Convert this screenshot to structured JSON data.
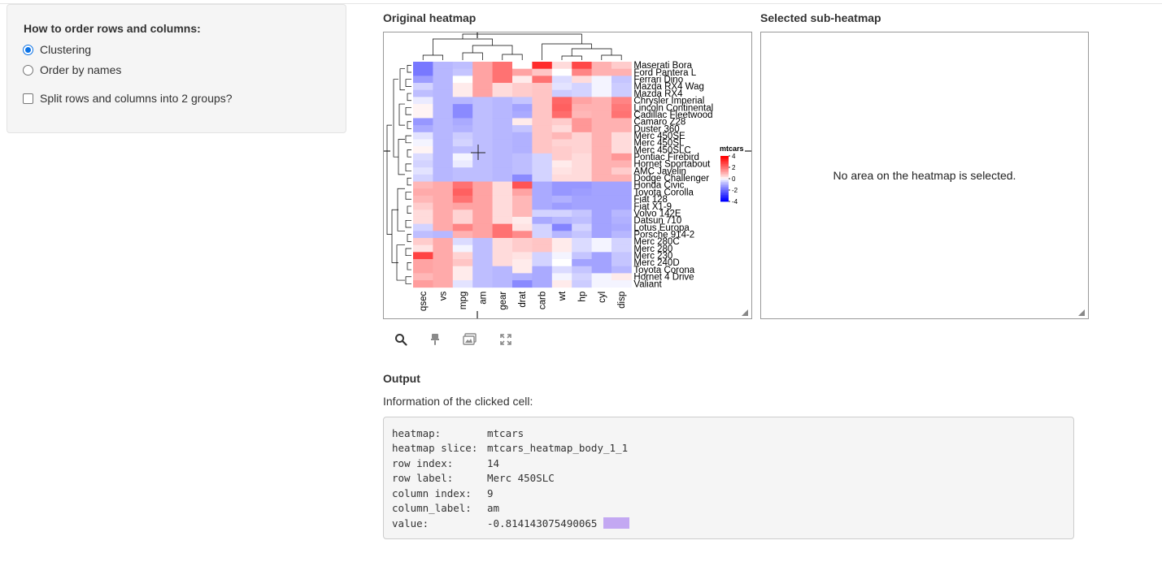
{
  "sidebar": {
    "title": "How to order rows and columns:",
    "options": [
      {
        "label": "Clustering",
        "selected": true
      },
      {
        "label": "Order by names",
        "selected": false
      }
    ],
    "split_label": "Split rows and columns into 2 groups?",
    "split_checked": false
  },
  "main": {
    "original_title": "Original heatmap",
    "sub_title": "Selected sub-heatmap",
    "sub_empty_message": "No area on the heatmap is selected."
  },
  "toolbar": {
    "icons": [
      "search-icon",
      "brush-icon",
      "image-icon",
      "expand-icon"
    ]
  },
  "output": {
    "title": "Output",
    "subtitle": "Information of the clicked cell:",
    "rows": [
      {
        "key": "heatmap:",
        "value": "mtcars"
      },
      {
        "key": "heatmap slice:",
        "value": "mtcars_heatmap_body_1_1"
      },
      {
        "key": "row index:",
        "value": "14"
      },
      {
        "key": "row label:",
        "value": "Merc 450SLC"
      },
      {
        "key": "column index:",
        "value": "9"
      },
      {
        "key": "column_label:",
        "value": "am"
      },
      {
        "key": "value:",
        "value": "-0.814143075490065"
      }
    ],
    "swatch_color": "#c3a8f2"
  },
  "chart_data": {
    "type": "heatmap",
    "legend_title": "mtcars",
    "legend_ticks": [
      "4",
      "2",
      "0",
      "-2",
      "-4"
    ],
    "color_scale": {
      "high": "#ff0000",
      "mid": "#ffffff",
      "low": "#0000ff"
    },
    "columns": [
      "qsec",
      "vs",
      "mpg",
      "am",
      "gear",
      "drat",
      "carb",
      "wt",
      "hp",
      "cyl",
      "disp"
    ],
    "rows": [
      "Maserati Bora",
      "Ford Pantera L",
      "Ferrari Dino",
      "Mazda RX4 Wag",
      "Mazda RX4",
      "Chrysler Imperial",
      "Lincoln Continental",
      "Cadillac Fleetwood",
      "Camaro Z28",
      "Duster 360",
      "Merc 450SE",
      "Merc 450SL",
      "Merc 450SLC",
      "Pontiac Firebird",
      "Hornet Sportabout",
      "AMC Javelin",
      "Dodge Challenger",
      "Honda Civic",
      "Toyota Corolla",
      "Fiat 128",
      "Fiat X1-9",
      "Volvo 142E",
      "Datsun 710",
      "Lotus Europa",
      "Porsche 914-2",
      "Merc 280C",
      "Merc 280",
      "Merc 230",
      "Merc 240D",
      "Toyota Corona",
      "Hornet 4 Drive",
      "Valiant"
    ],
    "values": [
      [
        -1.9,
        -0.9,
        -0.8,
        1.2,
        2.0,
        0.0,
        3.2,
        0.4,
        2.7,
        1.0,
        0.6
      ],
      [
        -1.9,
        -0.9,
        -0.7,
        1.2,
        2.0,
        1.2,
        0.7,
        0.0,
        1.7,
        1.0,
        1.0
      ],
      [
        -1.3,
        -0.9,
        0.0,
        1.2,
        2.0,
        0.2,
        2.0,
        -0.4,
        0.4,
        -0.1,
        -0.7
      ],
      [
        -0.5,
        -0.9,
        0.2,
        1.2,
        0.4,
        0.6,
        0.7,
        -0.3,
        -0.5,
        -0.1,
        -0.6
      ],
      [
        -0.8,
        -0.9,
        0.2,
        1.2,
        0.4,
        0.6,
        0.7,
        -0.6,
        -0.5,
        -0.1,
        -0.6
      ],
      [
        -0.2,
        -0.9,
        -0.9,
        -0.8,
        -0.9,
        -0.7,
        0.7,
        2.2,
        1.2,
        1.0,
        1.7
      ],
      [
        0.1,
        -0.9,
        -1.6,
        -0.8,
        -0.9,
        -1.2,
        0.7,
        2.3,
        1.0,
        1.0,
        1.9
      ],
      [
        0.1,
        -0.9,
        -1.6,
        -0.8,
        -0.9,
        -1.1,
        0.7,
        2.1,
        0.9,
        1.0,
        2.0
      ],
      [
        -1.4,
        -0.9,
        -1.1,
        -0.8,
        -0.9,
        0.2,
        0.7,
        0.6,
        1.4,
        1.0,
        1.0
      ],
      [
        -1.1,
        -0.9,
        -1.0,
        -0.8,
        -0.9,
        -0.7,
        0.7,
        0.4,
        1.4,
        1.0,
        1.0
      ],
      [
        -0.3,
        -0.9,
        -0.6,
        -0.8,
        -0.9,
        -1.0,
        0.7,
        0.9,
        0.5,
        1.0,
        0.4
      ],
      [
        -0.1,
        -0.9,
        -0.5,
        -0.8,
        -0.9,
        -1.0,
        0.7,
        0.5,
        0.5,
        1.0,
        0.4
      ],
      [
        0.1,
        -0.9,
        -0.8,
        -0.8,
        -0.9,
        -1.0,
        0.7,
        0.6,
        0.5,
        1.0,
        0.4
      ],
      [
        -0.4,
        -0.9,
        -0.1,
        -0.8,
        -0.9,
        -0.8,
        -0.5,
        0.6,
        0.4,
        1.0,
        1.4
      ],
      [
        -0.5,
        -0.9,
        -0.2,
        -0.8,
        -0.9,
        -0.8,
        -0.5,
        0.2,
        0.4,
        1.0,
        1.0
      ],
      [
        -0.3,
        -0.9,
        -0.8,
        -0.8,
        -0.9,
        -0.8,
        -0.5,
        0.3,
        0.4,
        1.0,
        0.6
      ],
      [
        -0.5,
        -0.9,
        -0.8,
        -0.8,
        -0.9,
        -1.6,
        -0.5,
        0.4,
        0.4,
        1.0,
        1.0
      ],
      [
        0.9,
        1.1,
        2.0,
        1.2,
        0.4,
        2.5,
        -1.1,
        -1.4,
        -1.4,
        -1.2,
        -1.2
      ],
      [
        1.1,
        1.1,
        2.3,
        1.2,
        0.4,
        1.2,
        -1.1,
        -1.4,
        -1.3,
        -1.2,
        -1.2
      ],
      [
        0.9,
        1.1,
        2.0,
        1.2,
        0.4,
        0.9,
        -1.1,
        -1.0,
        -1.2,
        -1.2,
        -1.2
      ],
      [
        0.6,
        1.1,
        1.2,
        1.2,
        0.4,
        0.9,
        -1.1,
        -1.3,
        -1.2,
        -1.2,
        -1.2
      ],
      [
        0.4,
        1.1,
        0.5,
        1.2,
        0.4,
        0.9,
        -0.5,
        -0.5,
        -0.7,
        -1.2,
        -0.9
      ],
      [
        0.4,
        1.1,
        0.5,
        1.2,
        0.4,
        0.2,
        -1.1,
        -0.9,
        -0.8,
        -1.2,
        -1.0
      ],
      [
        -0.5,
        1.1,
        1.7,
        1.2,
        2.0,
        0.3,
        -0.5,
        -1.7,
        -0.5,
        -1.2,
        -1.1
      ],
      [
        -0.8,
        -0.9,
        1.0,
        1.2,
        2.0,
        1.6,
        -0.5,
        -0.9,
        -0.7,
        -1.2,
        -0.9
      ],
      [
        0.6,
        1.1,
        -0.4,
        -0.8,
        0.4,
        0.6,
        0.7,
        0.2,
        -0.4,
        -0.1,
        -0.5
      ],
      [
        0.3,
        1.1,
        -0.1,
        -0.8,
        0.4,
        0.6,
        0.7,
        0.2,
        -0.4,
        -0.1,
        -0.5
      ],
      [
        2.8,
        1.1,
        0.5,
        -0.8,
        0.4,
        0.3,
        -0.5,
        -0.1,
        -0.7,
        -1.2,
        -0.7
      ],
      [
        1.2,
        1.1,
        0.7,
        -0.8,
        0.4,
        0.2,
        -0.5,
        0.0,
        -1.2,
        -1.2,
        -0.7
      ],
      [
        1.2,
        1.1,
        0.2,
        -0.8,
        -0.9,
        0.2,
        -1.1,
        -0.4,
        -0.7,
        -1.2,
        -0.9
      ],
      [
        0.9,
        1.1,
        0.2,
        -0.8,
        -0.9,
        -1.0,
        -1.1,
        -0.1,
        -0.5,
        -0.1,
        0.2
      ],
      [
        1.3,
        1.1,
        -0.3,
        -0.8,
        -0.9,
        -1.6,
        -1.1,
        0.2,
        -0.6,
        -0.1,
        -0.1
      ]
    ]
  }
}
